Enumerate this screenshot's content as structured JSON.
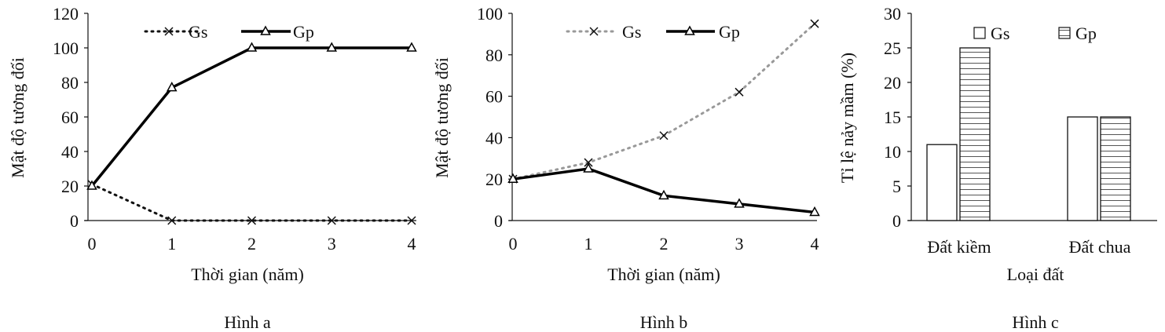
{
  "chart_data": [
    {
      "type": "line",
      "caption": "Hình a",
      "xlabel": "Thời gian (năm)",
      "ylabel": "Mật độ tương đối",
      "x": [
        0,
        1,
        2,
        3,
        4
      ],
      "ylim": [
        0,
        120
      ],
      "yticks": [
        0,
        20,
        40,
        60,
        80,
        100,
        120
      ],
      "legend": "top",
      "grid": false,
      "series": [
        {
          "name": "Gs",
          "values": [
            21,
            0,
            0,
            0,
            0
          ],
          "style": "dotted",
          "marker": "x",
          "color": "#111111"
        },
        {
          "name": "Gp",
          "values": [
            20,
            77,
            100,
            100,
            100
          ],
          "style": "solid",
          "marker": "triangle",
          "color": "#000000"
        }
      ]
    },
    {
      "type": "line",
      "caption": "Hình b",
      "xlabel": "Thời gian (năm)",
      "ylabel": "Mật độ tương đối",
      "x": [
        0,
        1,
        2,
        3,
        4
      ],
      "ylim": [
        0,
        100
      ],
      "yticks": [
        0,
        20,
        40,
        60,
        80,
        100
      ],
      "legend": "top",
      "grid": false,
      "series": [
        {
          "name": "Gs",
          "values": [
            20,
            28,
            41,
            62,
            95
          ],
          "style": "dotted",
          "marker": "x",
          "color": "#999999"
        },
        {
          "name": "Gp",
          "values": [
            20,
            25,
            12,
            8,
            4
          ],
          "style": "solid",
          "marker": "triangle",
          "color": "#000000"
        }
      ]
    },
    {
      "type": "bar",
      "caption": "Hình c",
      "xlabel": "Loại đất",
      "ylabel": "Tỉ lệ nảy mầm (%)",
      "categories": [
        "Đất kiềm",
        "Đất chua"
      ],
      "ylim": [
        0,
        30
      ],
      "yticks": [
        0,
        5,
        10,
        15,
        20,
        25,
        30
      ],
      "legend": "top",
      "grid": false,
      "series": [
        {
          "name": "Gs",
          "values": [
            11,
            15
          ],
          "fill": "white"
        },
        {
          "name": "Gp",
          "values": [
            25,
            15
          ],
          "fill": "horizontal-hatch"
        }
      ]
    }
  ]
}
